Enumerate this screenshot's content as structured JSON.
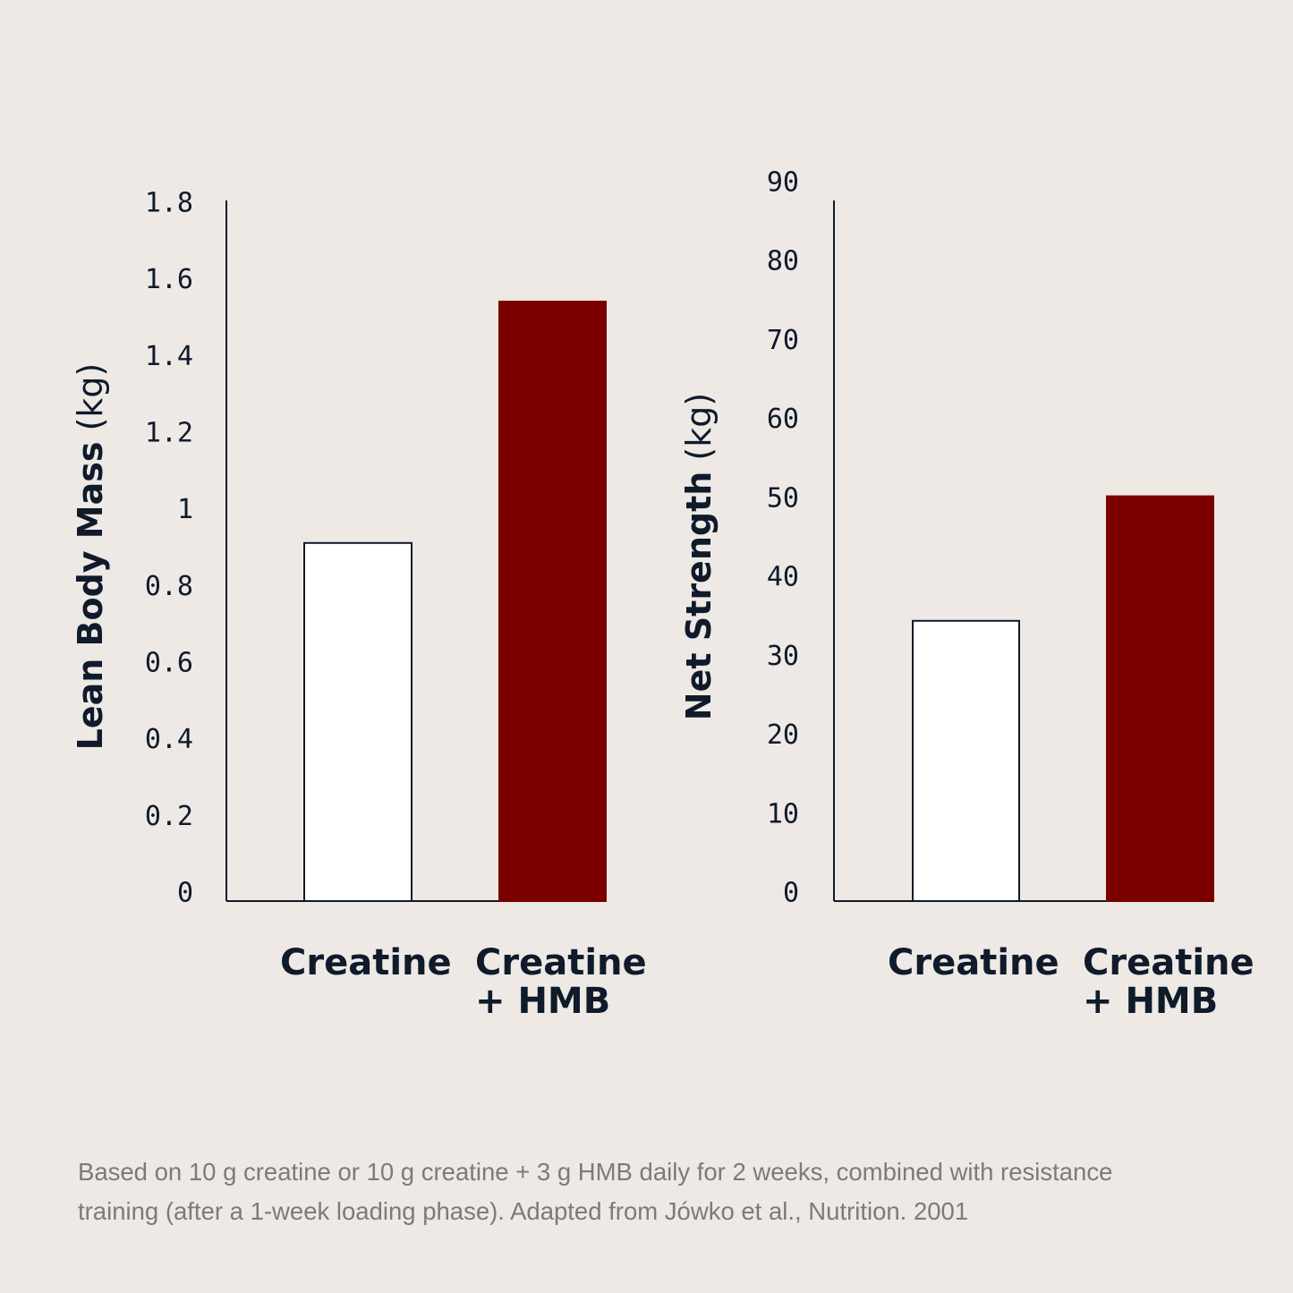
{
  "colors": {
    "background": "#EEE9E5",
    "ink": "#0F1A2B",
    "creatine_fill": "#FFFFFF",
    "combo_fill": "#7A0000",
    "caption": "#7D7A77"
  },
  "caption": {
    "line1": "Based on 10 g creatine or 10 g creatine + 3 g HMB daily for 2 weeks, combined with resistance",
    "line2": "training (after a 1-week loading phase). Adapted from Jówko et al., Nutrition. 2001"
  },
  "chart_data": [
    {
      "type": "bar",
      "ylabel_main": "Lean Body Mass",
      "ylabel_unit": "(kg)",
      "categories": [
        {
          "lines": [
            "Creatine"
          ]
        },
        {
          "lines": [
            "Creatine",
            "+ HMB"
          ]
        }
      ],
      "values": [
        0.92,
        1.54
      ],
      "ylim": [
        0,
        1.8
      ],
      "yticks": [
        {
          "value": 0,
          "label": "0"
        },
        {
          "value": 0.2,
          "label": "0.2"
        },
        {
          "value": 0.4,
          "label": "0.4"
        },
        {
          "value": 0.6,
          "label": "0.6"
        },
        {
          "value": 0.8,
          "label": "0.8"
        },
        {
          "value": 1,
          "label": "1"
        },
        {
          "value": 1.2,
          "label": "1.2"
        },
        {
          "value": 1.4,
          "label": "1.4"
        },
        {
          "value": 1.6,
          "label": "1.6"
        },
        {
          "value": 1.8,
          "label": "1.8"
        }
      ],
      "grid": false
    },
    {
      "type": "bar",
      "ylabel_main": "Net Strength",
      "ylabel_unit": "(kg)",
      "categories": [
        {
          "lines": [
            "Creatine"
          ]
        },
        {
          "lines": [
            "Creatine",
            "+ HMB"
          ]
        }
      ],
      "values": [
        36,
        52
      ],
      "ylim": [
        0,
        90
      ],
      "yticks": [
        {
          "value": 0,
          "label": "0"
        },
        {
          "value": 10,
          "label": "10"
        },
        {
          "value": 20,
          "label": "20"
        },
        {
          "value": 30,
          "label": "30"
        },
        {
          "value": 40,
          "label": "40"
        },
        {
          "value": 50,
          "label": "50"
        },
        {
          "value": 60,
          "label": "60"
        },
        {
          "value": 70,
          "label": "70"
        },
        {
          "value": 80,
          "label": "80"
        },
        {
          "value": 90,
          "label": "90"
        }
      ],
      "grid": false
    }
  ]
}
